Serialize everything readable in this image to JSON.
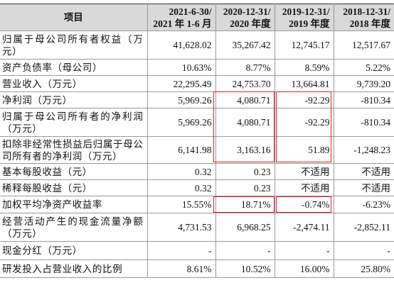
{
  "table": {
    "header": [
      [
        "项目"
      ],
      [
        "2021-6-30/",
        "2021 年 1-6 月"
      ],
      [
        "2020-12-31/",
        "2020 年度"
      ],
      [
        "2019-12-31/",
        "2019 年度"
      ],
      [
        "2018-12-31/",
        "2018 年度"
      ]
    ],
    "rows": [
      [
        "归属于母公司所有者权益（万元）",
        "41,628.02",
        "35,267.42",
        "12,745.17",
        "12,517.67"
      ],
      [
        "资产负债率（母公司）",
        "10.63%",
        "8.77%",
        "8.59%",
        "5.22%"
      ],
      [
        "营业收入（万元）",
        "22,295.49",
        "24,753.70",
        "13,664.81",
        "9,739.20"
      ],
      [
        "净利润（万元）",
        "5,969.26",
        "4,080.71",
        "-92.29",
        "-810.34"
      ],
      [
        "归属于母公司所有者的净利润（万元）",
        "5,969.26",
        "4,080.71",
        "-92.29",
        "-810.34"
      ],
      [
        "扣除非经常性损益后归属于母公司所有者的净利润（万元）",
        "6,141.98",
        "3,163.16",
        "51.89",
        "-1,248.23"
      ],
      [
        "基本每股收益（元）",
        "0.32",
        "0.23",
        "不适用",
        "不适用"
      ],
      [
        "稀释每股收益（元）",
        "0.32",
        "0.23",
        "不适用",
        "不适用"
      ],
      [
        "加权平均净资产收益率",
        "15.55%",
        "18.71%",
        "-0.74%",
        "-6.23%"
      ],
      [
        "经营活动产生的现金流量净额（万元）",
        "4,731.53",
        "6,968.25",
        "-2,474.11",
        "-2,852.11"
      ],
      [
        "现金分红（万元）",
        "-",
        "-",
        "-",
        "-"
      ],
      [
        "研发投入占营业收入的比例",
        "8.61%",
        "10.52%",
        "16.00%",
        "25.80%"
      ]
    ]
  }
}
